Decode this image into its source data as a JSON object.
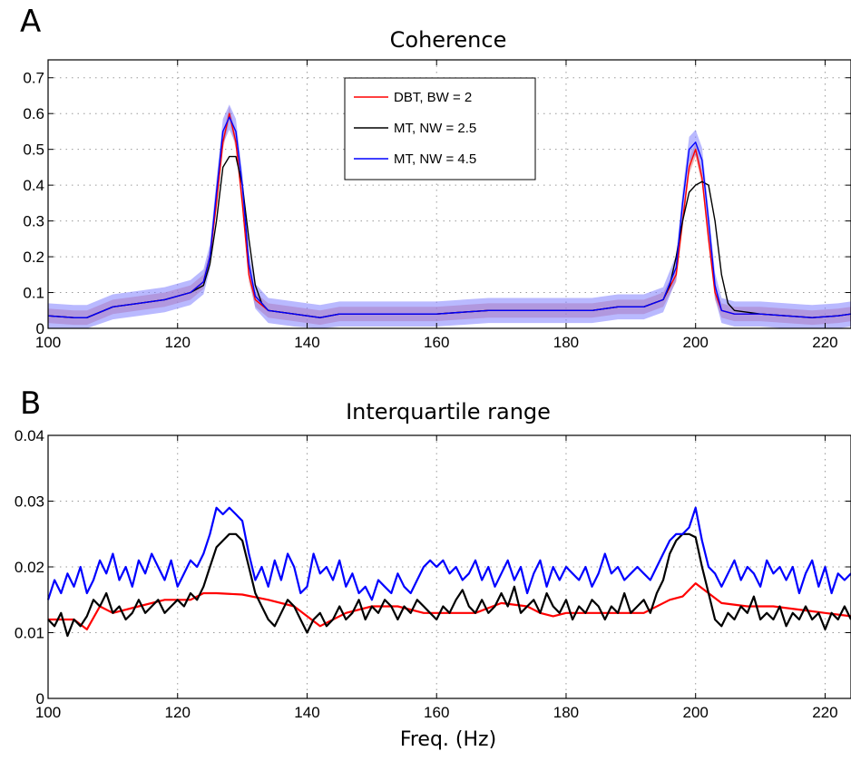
{
  "chart_data": [
    {
      "type": "line",
      "panel_label": "A",
      "title": "Coherence",
      "xlabel": "",
      "ylabel": "",
      "xlim": [
        100,
        224
      ],
      "ylim": [
        0,
        0.75
      ],
      "xticks": [
        100,
        120,
        140,
        160,
        180,
        200,
        220
      ],
      "yticks": [
        0,
        0.1,
        0.2,
        0.3,
        0.4,
        0.5,
        0.6,
        0.7
      ],
      "ytick_labels": [
        "0",
        "0.1",
        "0.2",
        "0.3",
        "0.4",
        "0.5",
        "0.6",
        "0.7"
      ],
      "grid": true,
      "legend_position": "top-center",
      "series": [
        {
          "name": "DBT, BW = 2",
          "color": "#ff0000",
          "band_color": "#e07a7a",
          "band_halfwidth": 0.02,
          "x": [
            100,
            104,
            106,
            110,
            114,
            118,
            122,
            124,
            125,
            126,
            127,
            128,
            129,
            130,
            131,
            132,
            134,
            138,
            142,
            145,
            148,
            152,
            156,
            160,
            164,
            168,
            172,
            176,
            180,
            184,
            188,
            192,
            195,
            197,
            198,
            199,
            200,
            201,
            202,
            203,
            204,
            206,
            210,
            214,
            218,
            222,
            224
          ],
          "y": [
            0.035,
            0.03,
            0.03,
            0.06,
            0.07,
            0.08,
            0.1,
            0.13,
            0.2,
            0.35,
            0.52,
            0.6,
            0.52,
            0.35,
            0.15,
            0.08,
            0.05,
            0.04,
            0.03,
            0.04,
            0.04,
            0.04,
            0.04,
            0.04,
            0.045,
            0.05,
            0.05,
            0.05,
            0.05,
            0.05,
            0.06,
            0.06,
            0.08,
            0.15,
            0.3,
            0.45,
            0.5,
            0.42,
            0.25,
            0.1,
            0.05,
            0.04,
            0.04,
            0.035,
            0.03,
            0.035,
            0.04
          ]
        },
        {
          "name": "MT, NW = 2.5",
          "color": "#000000",
          "x": [
            100,
            104,
            106,
            110,
            114,
            118,
            122,
            124,
            125,
            126,
            127,
            128,
            129,
            130,
            131,
            132,
            133,
            134,
            138,
            142,
            145,
            148,
            152,
            156,
            160,
            164,
            168,
            172,
            176,
            180,
            184,
            188,
            192,
            195,
            196,
            197,
            198,
            199,
            200,
            201,
            202,
            203,
            204,
            205,
            206,
            210,
            214,
            218,
            222,
            224
          ],
          "y": [
            0.035,
            0.03,
            0.03,
            0.06,
            0.07,
            0.08,
            0.1,
            0.12,
            0.18,
            0.3,
            0.45,
            0.48,
            0.48,
            0.4,
            0.25,
            0.12,
            0.07,
            0.05,
            0.04,
            0.03,
            0.04,
            0.04,
            0.04,
            0.04,
            0.04,
            0.045,
            0.05,
            0.05,
            0.05,
            0.05,
            0.05,
            0.06,
            0.06,
            0.08,
            0.12,
            0.2,
            0.3,
            0.38,
            0.4,
            0.41,
            0.4,
            0.3,
            0.15,
            0.07,
            0.05,
            0.04,
            0.035,
            0.03,
            0.035,
            0.04
          ]
        },
        {
          "name": "MT, NW = 4.5",
          "color": "#0000ff",
          "band_color": "#7f7fff",
          "band_halfwidth": 0.035,
          "x": [
            100,
            104,
            106,
            110,
            114,
            118,
            122,
            124,
            125,
            126,
            127,
            128,
            129,
            130,
            131,
            132,
            134,
            138,
            142,
            145,
            148,
            152,
            156,
            160,
            164,
            168,
            172,
            176,
            180,
            184,
            188,
            192,
            195,
            197,
            198,
            199,
            200,
            201,
            202,
            203,
            204,
            206,
            210,
            214,
            218,
            222,
            224
          ],
          "y": [
            0.035,
            0.03,
            0.03,
            0.06,
            0.07,
            0.08,
            0.1,
            0.13,
            0.2,
            0.38,
            0.55,
            0.59,
            0.55,
            0.4,
            0.18,
            0.09,
            0.05,
            0.04,
            0.03,
            0.04,
            0.04,
            0.04,
            0.04,
            0.04,
            0.045,
            0.05,
            0.05,
            0.05,
            0.05,
            0.05,
            0.06,
            0.06,
            0.08,
            0.17,
            0.35,
            0.5,
            0.52,
            0.47,
            0.3,
            0.12,
            0.05,
            0.04,
            0.04,
            0.035,
            0.03,
            0.035,
            0.04
          ]
        }
      ]
    },
    {
      "type": "line",
      "panel_label": "B",
      "title": "Interquartile range",
      "xlabel": "Freq. (Hz)",
      "ylabel": "",
      "xlim": [
        100,
        224
      ],
      "ylim": [
        0,
        0.04
      ],
      "xticks": [
        100,
        120,
        140,
        160,
        180,
        200,
        220
      ],
      "yticks": [
        0,
        0.01,
        0.02,
        0.03,
        0.04
      ],
      "ytick_labels": [
        "0",
        "0.01",
        "0.02",
        "0.03",
        "0.04"
      ],
      "grid": true,
      "series": [
        {
          "name": "",
          "color": "#ff0000",
          "x": [
            100,
            104,
            106,
            108,
            110,
            114,
            118,
            122,
            124,
            126,
            130,
            134,
            138,
            140,
            142,
            146,
            150,
            154,
            158,
            162,
            166,
            170,
            174,
            176,
            178,
            180,
            184,
            188,
            192,
            196,
            198,
            200,
            202,
            204,
            208,
            212,
            216,
            220,
            224
          ],
          "y": [
            0.012,
            0.012,
            0.0105,
            0.014,
            0.013,
            0.014,
            0.015,
            0.015,
            0.016,
            0.016,
            0.0158,
            0.015,
            0.014,
            0.0125,
            0.011,
            0.013,
            0.014,
            0.014,
            0.013,
            0.013,
            0.013,
            0.0145,
            0.014,
            0.013,
            0.0125,
            0.013,
            0.013,
            0.013,
            0.013,
            0.015,
            0.0155,
            0.0175,
            0.016,
            0.0145,
            0.014,
            0.014,
            0.0135,
            0.013,
            0.0125
          ]
        },
        {
          "name": "",
          "color": "#000000",
          "x": [
            100,
            101,
            102,
            103,
            104,
            105,
            106,
            107,
            108,
            109,
            110,
            111,
            112,
            113,
            114,
            115,
            116,
            117,
            118,
            119,
            120,
            121,
            122,
            123,
            124,
            125,
            126,
            127,
            128,
            129,
            130,
            131,
            132,
            133,
            134,
            135,
            136,
            137,
            138,
            139,
            140,
            141,
            142,
            143,
            144,
            145,
            146,
            147,
            148,
            149,
            150,
            151,
            152,
            153,
            154,
            155,
            156,
            157,
            158,
            159,
            160,
            161,
            162,
            163,
            164,
            165,
            166,
            167,
            168,
            169,
            170,
            171,
            172,
            173,
            174,
            175,
            176,
            177,
            178,
            179,
            180,
            181,
            182,
            183,
            184,
            185,
            186,
            187,
            188,
            189,
            190,
            191,
            192,
            193,
            194,
            195,
            196,
            197,
            198,
            199,
            200,
            201,
            202,
            203,
            204,
            205,
            206,
            207,
            208,
            209,
            210,
            211,
            212,
            213,
            214,
            215,
            216,
            217,
            218,
            219,
            220,
            221,
            222,
            223,
            224
          ],
          "y": [
            0.012,
            0.011,
            0.013,
            0.0095,
            0.012,
            0.011,
            0.0125,
            0.015,
            0.014,
            0.016,
            0.013,
            0.014,
            0.012,
            0.013,
            0.015,
            0.013,
            0.014,
            0.015,
            0.013,
            0.014,
            0.015,
            0.014,
            0.016,
            0.015,
            0.017,
            0.02,
            0.023,
            0.024,
            0.025,
            0.025,
            0.024,
            0.02,
            0.016,
            0.014,
            0.012,
            0.011,
            0.013,
            0.015,
            0.014,
            0.012,
            0.01,
            0.012,
            0.013,
            0.011,
            0.012,
            0.014,
            0.012,
            0.013,
            0.015,
            0.012,
            0.014,
            0.013,
            0.015,
            0.014,
            0.012,
            0.014,
            0.013,
            0.015,
            0.014,
            0.013,
            0.012,
            0.014,
            0.013,
            0.015,
            0.0165,
            0.014,
            0.013,
            0.015,
            0.013,
            0.014,
            0.016,
            0.014,
            0.017,
            0.013,
            0.014,
            0.015,
            0.013,
            0.016,
            0.014,
            0.013,
            0.015,
            0.012,
            0.014,
            0.013,
            0.015,
            0.014,
            0.012,
            0.014,
            0.013,
            0.016,
            0.013,
            0.014,
            0.015,
            0.013,
            0.016,
            0.018,
            0.022,
            0.024,
            0.025,
            0.025,
            0.0245,
            0.02,
            0.016,
            0.012,
            0.011,
            0.013,
            0.012,
            0.014,
            0.013,
            0.0155,
            0.012,
            0.013,
            0.012,
            0.014,
            0.011,
            0.013,
            0.012,
            0.014,
            0.012,
            0.013,
            0.0105,
            0.013,
            0.012,
            0.014,
            0.012
          ]
        },
        {
          "name": "",
          "color": "#0000ff",
          "x": [
            100,
            101,
            102,
            103,
            104,
            105,
            106,
            107,
            108,
            109,
            110,
            111,
            112,
            113,
            114,
            115,
            116,
            117,
            118,
            119,
            120,
            121,
            122,
            123,
            124,
            125,
            126,
            127,
            128,
            129,
            130,
            131,
            132,
            133,
            134,
            135,
            136,
            137,
            138,
            139,
            140,
            141,
            142,
            143,
            144,
            145,
            146,
            147,
            148,
            149,
            150,
            151,
            152,
            153,
            154,
            155,
            156,
            157,
            158,
            159,
            160,
            161,
            162,
            163,
            164,
            165,
            166,
            167,
            168,
            169,
            170,
            171,
            172,
            173,
            174,
            175,
            176,
            177,
            178,
            179,
            180,
            181,
            182,
            183,
            184,
            185,
            186,
            187,
            188,
            189,
            190,
            191,
            192,
            193,
            194,
            195,
            196,
            197,
            198,
            199,
            200,
            201,
            202,
            203,
            204,
            205,
            206,
            207,
            208,
            209,
            210,
            211,
            212,
            213,
            214,
            215,
            216,
            217,
            218,
            219,
            220,
            221,
            222,
            223,
            224
          ],
          "y": [
            0.015,
            0.018,
            0.016,
            0.019,
            0.017,
            0.02,
            0.016,
            0.018,
            0.021,
            0.019,
            0.022,
            0.018,
            0.02,
            0.017,
            0.021,
            0.019,
            0.022,
            0.02,
            0.018,
            0.021,
            0.017,
            0.019,
            0.021,
            0.02,
            0.022,
            0.025,
            0.029,
            0.028,
            0.029,
            0.028,
            0.027,
            0.022,
            0.018,
            0.02,
            0.017,
            0.021,
            0.018,
            0.022,
            0.02,
            0.016,
            0.017,
            0.022,
            0.019,
            0.02,
            0.018,
            0.021,
            0.017,
            0.019,
            0.016,
            0.017,
            0.015,
            0.018,
            0.017,
            0.016,
            0.019,
            0.017,
            0.016,
            0.018,
            0.02,
            0.021,
            0.02,
            0.021,
            0.019,
            0.02,
            0.018,
            0.019,
            0.021,
            0.018,
            0.02,
            0.017,
            0.019,
            0.021,
            0.018,
            0.02,
            0.016,
            0.019,
            0.021,
            0.017,
            0.02,
            0.018,
            0.02,
            0.019,
            0.018,
            0.02,
            0.017,
            0.019,
            0.022,
            0.019,
            0.02,
            0.018,
            0.019,
            0.02,
            0.019,
            0.018,
            0.02,
            0.022,
            0.024,
            0.025,
            0.025,
            0.026,
            0.029,
            0.024,
            0.02,
            0.019,
            0.017,
            0.019,
            0.021,
            0.018,
            0.02,
            0.019,
            0.017,
            0.021,
            0.019,
            0.02,
            0.018,
            0.02,
            0.016,
            0.019,
            0.021,
            0.017,
            0.02,
            0.016,
            0.019,
            0.018,
            0.019
          ]
        }
      ]
    }
  ]
}
